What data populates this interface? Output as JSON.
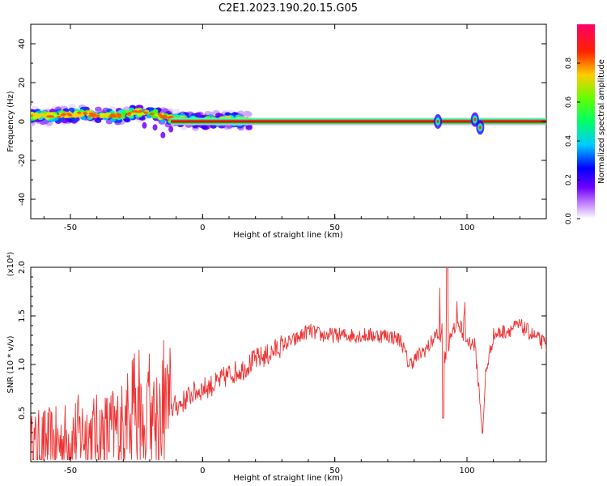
{
  "title": "C2E1.2023.190.20.15.G05",
  "chart_data": [
    {
      "type": "heatmap",
      "xlabel": "Height of straight line (km)",
      "ylabel": "Frequency (Hz)",
      "xlim": [
        -65,
        130
      ],
      "ylim": [
        -50,
        50
      ],
      "xticks": [
        "-50",
        "0",
        "50",
        "100"
      ],
      "yticks": [
        "-40",
        "-20",
        "0",
        "20",
        "40"
      ],
      "colorbar": {
        "label": "Normalized spectral amplitude",
        "range": [
          0,
          1
        ],
        "ticks": [
          "0.0",
          "0.2",
          "0.4",
          "0.6",
          "0.8"
        ],
        "colormap": "rainbow",
        "colors": [
          "#ffffff",
          "#7b00ff",
          "#0000ff",
          "#00ccff",
          "#00ff66",
          "#66ff00",
          "#ffaa00",
          "#ff0000",
          "#ff0066"
        ]
      },
      "scatter_band": {
        "x_range": [
          -65,
          18
        ],
        "freq_center": [
          [
            -65,
            3
          ],
          [
            -55,
            3
          ],
          [
            -45,
            4
          ],
          [
            -38,
            3
          ],
          [
            -30,
            3
          ],
          [
            -25,
            5
          ],
          [
            -18,
            4
          ],
          [
            -14,
            2
          ],
          [
            -8,
            1
          ],
          [
            0,
            0
          ],
          [
            10,
            1
          ],
          [
            18,
            0
          ]
        ],
        "half_width": 4
      },
      "carrier": {
        "x_range": [
          -12,
          130
        ],
        "freq": 0,
        "color": "#ff0000"
      },
      "bursts": [
        {
          "x": 89,
          "freq": 0
        },
        {
          "x": 103,
          "freq": 1
        },
        {
          "x": 105,
          "freq": -3
        }
      ]
    },
    {
      "type": "line",
      "xlabel": "Height of straight line (km)",
      "ylabel": "SNR (10 * v/v)",
      "multiplier": "(x10⁴)",
      "xlim": [
        -65,
        130
      ],
      "ylim": [
        0,
        2.0
      ],
      "xticks": [
        "-50",
        "0",
        "50",
        "100"
      ],
      "yticks": [
        "0.5",
        "1.0",
        "1.5",
        "2.0"
      ],
      "color": "#ee3333",
      "x": [
        -65,
        -60,
        -55,
        -50,
        -45,
        -40,
        -35,
        -30,
        -25,
        -20,
        -15,
        -12,
        -8,
        -4,
        0,
        5,
        10,
        15,
        20,
        25,
        30,
        35,
        40,
        45,
        50,
        55,
        60,
        65,
        70,
        75,
        78,
        82,
        86,
        88,
        90,
        92,
        94,
        96,
        98,
        100,
        103,
        105,
        106,
        107,
        110,
        115,
        120,
        125,
        130
      ],
      "y": [
        0.15,
        0.2,
        0.18,
        0.25,
        0.3,
        0.25,
        0.3,
        0.35,
        0.35,
        0.45,
        0.5,
        0.55,
        0.6,
        0.7,
        0.75,
        0.8,
        0.9,
        0.95,
        1.05,
        1.1,
        1.2,
        1.25,
        1.35,
        1.3,
        1.3,
        1.3,
        1.3,
        1.3,
        1.3,
        1.25,
        1.0,
        1.1,
        1.2,
        1.3,
        1.3,
        1.05,
        1.3,
        1.4,
        1.35,
        1.25,
        1.2,
        0.6,
        0.25,
        0.9,
        1.3,
        1.35,
        1.4,
        1.3,
        1.2
      ]
    }
  ]
}
